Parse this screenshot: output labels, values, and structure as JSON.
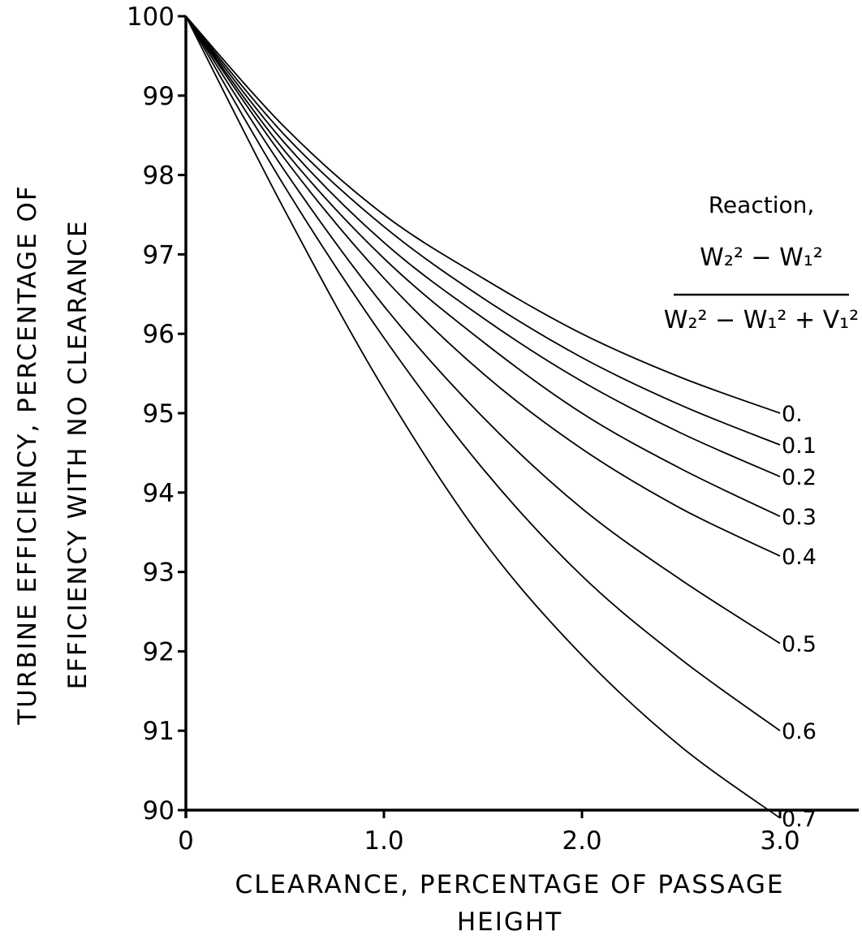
{
  "chart_data": {
    "type": "line",
    "title": "",
    "xlabel_lines": [
      "CLEARANCE, PERCENTAGE OF PASSAGE",
      "HEIGHT"
    ],
    "ylabel_lines": [
      "TURBINE EFFICIENCY, PERCENTAGE OF",
      "EFFICIENCY WITH NO CLEARANCE"
    ],
    "xlim": [
      0,
      3.3
    ],
    "ylim": [
      90,
      100
    ],
    "x_ticks": [
      {
        "value": 0,
        "label": "0"
      },
      {
        "value": 1.0,
        "label": "1.0"
      },
      {
        "value": 2.0,
        "label": "2.0"
      },
      {
        "value": 3.0,
        "label": "3.0"
      }
    ],
    "y_ticks": [
      {
        "value": 90,
        "label": "90"
      },
      {
        "value": 91,
        "label": "91"
      },
      {
        "value": 92,
        "label": "92"
      },
      {
        "value": 93,
        "label": "93"
      },
      {
        "value": 94,
        "label": "94"
      },
      {
        "value": 95,
        "label": "95"
      },
      {
        "value": 96,
        "label": "96"
      },
      {
        "value": 97,
        "label": "97"
      },
      {
        "value": 98,
        "label": "98"
      },
      {
        "value": 99,
        "label": "99"
      },
      {
        "value": 100,
        "label": "100"
      }
    ],
    "grid": false,
    "legend": {
      "title": "Reaction,",
      "formula_numerator": "W₂² − W₁²",
      "formula_denominator": "W₂² − W₁² + V₁²",
      "placement": "right"
    },
    "x": [
      0,
      0.5,
      1.0,
      1.5,
      2.0,
      2.5,
      3.0
    ],
    "series": [
      {
        "name": "0.",
        "values": [
          100,
          98.6,
          97.5,
          96.7,
          96.0,
          95.45,
          95.0
        ]
      },
      {
        "name": "0.1",
        "values": [
          100,
          98.5,
          97.35,
          96.45,
          95.7,
          95.1,
          94.6
        ]
      },
      {
        "name": "0.2",
        "values": [
          100,
          98.4,
          97.15,
          96.2,
          95.4,
          94.75,
          94.2
        ]
      },
      {
        "name": "0.3",
        "values": [
          100,
          98.3,
          96.95,
          95.9,
          95.0,
          94.3,
          93.7
        ]
      },
      {
        "name": "0.4",
        "values": [
          100,
          98.2,
          96.7,
          95.5,
          94.55,
          93.8,
          93.2
        ]
      },
      {
        "name": "0.5",
        "values": [
          100,
          98.05,
          96.35,
          94.95,
          93.8,
          92.9,
          92.1
        ]
      },
      {
        "name": "0.6",
        "values": [
          100,
          97.85,
          95.95,
          94.3,
          92.95,
          91.9,
          91.0
        ]
      },
      {
        "name": "0.7",
        "values": [
          100,
          97.55,
          95.3,
          93.4,
          91.95,
          90.8,
          89.9
        ]
      }
    ]
  }
}
